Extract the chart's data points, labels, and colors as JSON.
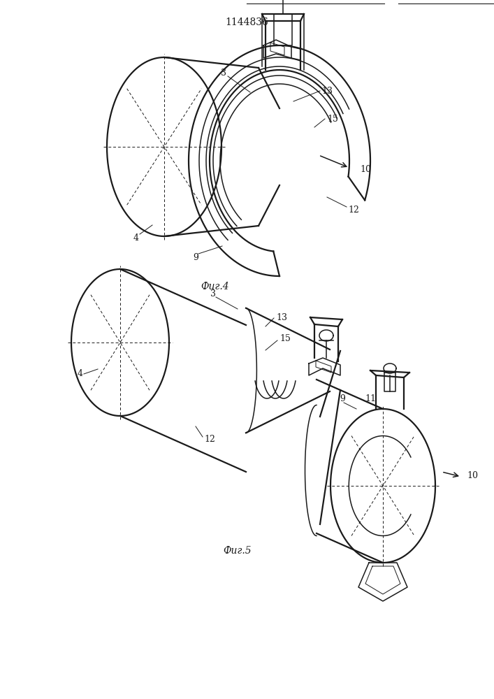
{
  "title": "1144836",
  "fig4_caption": "Фиг.4",
  "fig5_caption": "Фиг.5",
  "bg_color": "#ffffff",
  "line_color": "#1a1a1a"
}
